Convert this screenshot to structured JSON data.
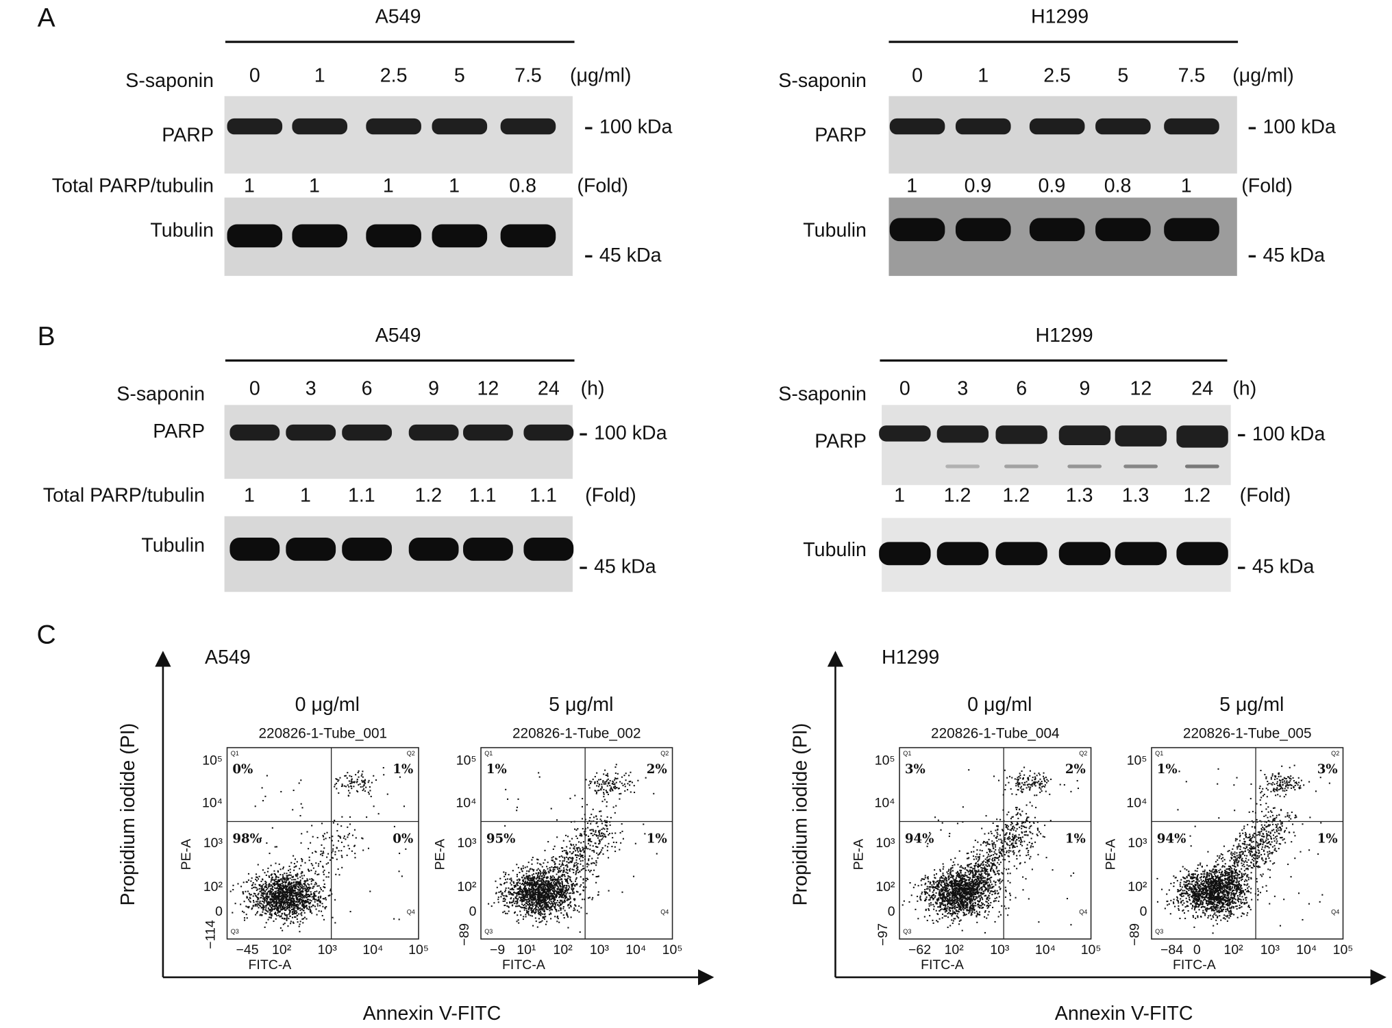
{
  "panel_a": {
    "label": "A",
    "blots": [
      {
        "cell_line": "A549",
        "treatment": "S-saponin",
        "conditions": [
          0,
          1,
          2.5,
          5,
          7.5
        ],
        "unit": "(μg/ml)",
        "parp": "PARP",
        "parp_marker": "100 kDa",
        "ratio_label": "Total PARP/tubulin",
        "ratios": [
          1,
          1,
          1,
          1,
          0.8
        ],
        "fold": "(Fold)",
        "tubulin": "Tubulin",
        "tubulin_marker": "45 kDa"
      },
      {
        "cell_line": "H1299",
        "treatment": "S-saponin",
        "conditions": [
          0,
          1,
          2.5,
          5,
          7.5
        ],
        "unit": "(μg/ml)",
        "parp": "PARP",
        "parp_marker": "100 kDa",
        "ratios": [
          1,
          0.9,
          0.9,
          0.8,
          1
        ],
        "fold": "(Fold)",
        "tubulin": "Tubulin",
        "tubulin_marker": "45 kDa"
      }
    ]
  },
  "panel_b": {
    "label": "B",
    "blots": [
      {
        "cell_line": "A549",
        "treatment": "S-saponin",
        "conditions": [
          0,
          3,
          6,
          9,
          12,
          24
        ],
        "unit": "(h)",
        "parp": "PARP",
        "parp_marker": "100 kDa",
        "ratio_label": "Total PARP/tubulin",
        "ratios": [
          1,
          1,
          1.1,
          1.2,
          1.1,
          1.1
        ],
        "fold": "(Fold)",
        "tubulin": "Tubulin",
        "tubulin_marker": "45 kDa"
      },
      {
        "cell_line": "H1299",
        "treatment": "S-saponin",
        "conditions": [
          0,
          3,
          6,
          9,
          12,
          24
        ],
        "unit": "(h)",
        "parp": "PARP",
        "parp_marker": "100 kDa",
        "ratios": [
          1,
          1.2,
          1.2,
          1.3,
          1.3,
          1.2
        ],
        "fold": "(Fold)",
        "tubulin": "Tubulin",
        "tubulin_marker": "45 kDa"
      }
    ]
  },
  "panel_c": {
    "label": "C",
    "quadrant_names": [
      "Q1",
      "Q2",
      "Q3",
      "Q4"
    ],
    "groups": [
      {
        "cell_line": "A549",
        "y_axis": "Propidium iodide (PI)",
        "x_axis": "Annexin V-FITC",
        "plots": [
          {
            "title": "0 μg/ml",
            "tube": "220826-1-Tube_001",
            "quadrants": [
              "0%",
              "1%",
              "98%",
              "0%"
            ],
            "y_label": "PE-A",
            "x_label": "FITC-A",
            "yticks": [
              "10⁵",
              "10⁴",
              "10³",
              "10²",
              "0",
              "−114"
            ],
            "xticks": [
              "−45",
              "10²",
              "10³",
              "10⁴",
              "10⁵"
            ]
          },
          {
            "title": "5 μg/ml",
            "tube": "220826-1-Tube_002",
            "quadrants": [
              "1%",
              "2%",
              "95%",
              "1%"
            ],
            "y_label": "PE-A",
            "x_label": "FITC-A",
            "yticks": [
              "10⁵",
              "10⁴",
              "10³",
              "10²",
              "0",
              "−89"
            ],
            "xticks": [
              "−9",
              "10¹",
              "10²",
              "10³",
              "10⁴",
              "10⁵"
            ]
          }
        ]
      },
      {
        "cell_line": "H1299",
        "y_axis": "Propidium iodide (PI)",
        "x_axis": "Annexin V-FITC",
        "plots": [
          {
            "title": "0 μg/ml",
            "tube": "220826-1-Tube_004",
            "quadrants": [
              "3%",
              "2%",
              "94%",
              "1%"
            ],
            "y_label": "PE-A",
            "x_label": "FITC-A",
            "yticks": [
              "10⁵",
              "10⁴",
              "10³",
              "10²",
              "0",
              "−97"
            ],
            "xticks": [
              "−62",
              "10²",
              "10³",
              "10⁴",
              "10⁵"
            ]
          },
          {
            "title": "5 μg/ml",
            "tube": "220826-1-Tube_005",
            "quadrants": [
              "1%",
              "3%",
              "94%",
              "1%"
            ],
            "y_label": "PE-A",
            "x_label": "FITC-A",
            "yticks": [
              "10⁵",
              "10⁴",
              "10³",
              "10²",
              "0",
              "−89"
            ],
            "xticks": [
              "−84",
              "0",
              "10²",
              "10³",
              "10⁴",
              "10⁵"
            ]
          }
        ]
      }
    ]
  }
}
